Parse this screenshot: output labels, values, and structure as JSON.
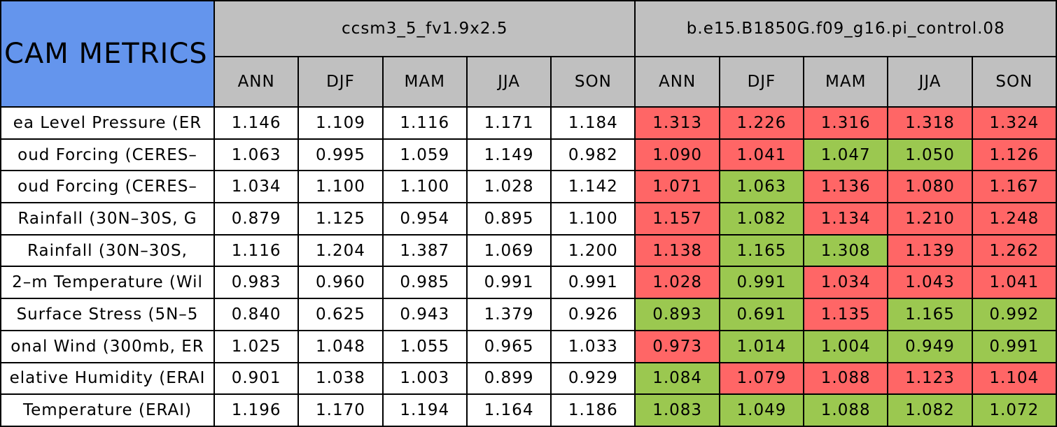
{
  "header": {
    "title": "CAM METRICS",
    "models": [
      "ccsm3_5_fv1.9x2.5",
      "b.e15.B1850G.f09_g16.pi_control.08"
    ],
    "seasons": [
      [
        "ANN",
        "DJF",
        "MAM",
        "JJA",
        "SON"
      ],
      [
        "ANN",
        "DJF",
        "MAM",
        "JJA",
        "SON"
      ]
    ]
  },
  "table": {
    "rows": [
      {
        "label": "ea Level Pressure (ER",
        "values": [
          "1.146",
          "1.109",
          "1.116",
          "1.171",
          "1.184",
          "1.313",
          "1.226",
          "1.316",
          "1.318",
          "1.324"
        ],
        "fills": [
          "#ff6666",
          "#ff6666",
          "#ff6666",
          "#ff6666",
          "#ff6666"
        ]
      },
      {
        "label": "oud Forcing (CERES–",
        "values": [
          "1.063",
          "0.995",
          "1.059",
          "1.149",
          "0.982",
          "1.090",
          "1.041",
          "1.047",
          "1.050",
          "1.126"
        ],
        "fills": [
          "#ff6666",
          "#ff6666",
          "#9bc850",
          "#9bc850",
          "#ff6666"
        ]
      },
      {
        "label": "oud Forcing (CERES–",
        "values": [
          "1.034",
          "1.100",
          "1.100",
          "1.028",
          "1.142",
          "1.071",
          "1.063",
          "1.136",
          "1.080",
          "1.167"
        ],
        "fills": [
          "#ff6666",
          "#9bc850",
          "#ff6666",
          "#ff6666",
          "#ff6666"
        ]
      },
      {
        "label": "Rainfall (30N–30S, G",
        "values": [
          "0.879",
          "1.125",
          "0.954",
          "0.895",
          "1.100",
          "1.157",
          "1.082",
          "1.134",
          "1.210",
          "1.248"
        ],
        "fills": [
          "#ff6666",
          "#9bc850",
          "#ff6666",
          "#ff6666",
          "#ff6666"
        ]
      },
      {
        "label": "Rainfall (30N–30S,",
        "values": [
          "1.116",
          "1.204",
          "1.387",
          "1.069",
          "1.200",
          "1.138",
          "1.165",
          "1.308",
          "1.139",
          "1.262"
        ],
        "fills": [
          "#ff6666",
          "#9bc850",
          "#9bc850",
          "#ff6666",
          "#ff6666"
        ]
      },
      {
        "label": "2–m Temperature (Wil",
        "values": [
          "0.983",
          "0.960",
          "0.985",
          "0.991",
          "0.991",
          "1.028",
          "0.991",
          "1.034",
          "1.043",
          "1.041"
        ],
        "fills": [
          "#ff6666",
          "#9bc850",
          "#ff6666",
          "#ff6666",
          "#ff6666"
        ]
      },
      {
        "label": "Surface Stress (5N–5",
        "values": [
          "0.840",
          "0.625",
          "0.943",
          "1.379",
          "0.926",
          "0.893",
          "0.691",
          "1.135",
          "1.165",
          "0.992"
        ],
        "fills": [
          "#9bc850",
          "#9bc850",
          "#ff6666",
          "#9bc850",
          "#9bc850"
        ]
      },
      {
        "label": "onal Wind (300mb, ER",
        "values": [
          "1.025",
          "1.048",
          "1.055",
          "0.965",
          "1.033",
          "0.973",
          "1.014",
          "1.004",
          "0.949",
          "0.991"
        ],
        "fills": [
          "#ff6666",
          "#9bc850",
          "#9bc850",
          "#9bc850",
          "#9bc850"
        ]
      },
      {
        "label": "elative Humidity (ERAI",
        "values": [
          "0.901",
          "1.038",
          "1.003",
          "0.899",
          "0.929",
          "1.084",
          "1.079",
          "1.088",
          "1.123",
          "1.104"
        ],
        "fills": [
          "#9bc850",
          "#ff6666",
          "#ff6666",
          "#ff6666",
          "#ff6666"
        ]
      },
      {
        "label": "Temperature (ERAI)",
        "values": [
          "1.196",
          "1.170",
          "1.194",
          "1.164",
          "1.186",
          "1.083",
          "1.049",
          "1.088",
          "1.082",
          "1.072"
        ],
        "fills": [
          "#9bc850",
          "#9bc850",
          "#9bc850",
          "#9bc850",
          "#9bc850"
        ]
      }
    ]
  }
}
